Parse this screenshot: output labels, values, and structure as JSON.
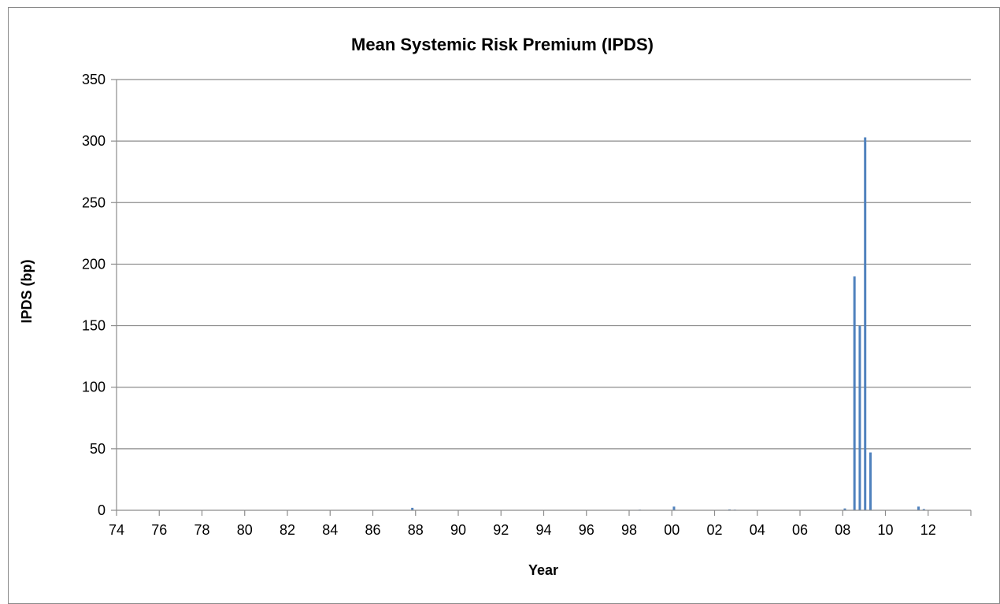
{
  "chart_data": {
    "type": "bar",
    "title": "Mean Systemic Risk Premium (IPDS)",
    "xlabel": "Year",
    "ylabel": "IPDS (bp)",
    "xlim": [
      1974,
      2014
    ],
    "ylim": [
      0,
      350
    ],
    "yticks": [
      0,
      50,
      100,
      150,
      200,
      250,
      300,
      350
    ],
    "xticks": [
      {
        "year": 1974,
        "label": "74"
      },
      {
        "year": 1976,
        "label": "76"
      },
      {
        "year": 1978,
        "label": "78"
      },
      {
        "year": 1980,
        "label": "80"
      },
      {
        "year": 1982,
        "label": "82"
      },
      {
        "year": 1984,
        "label": "84"
      },
      {
        "year": 1986,
        "label": "86"
      },
      {
        "year": 1988,
        "label": "88"
      },
      {
        "year": 1990,
        "label": "90"
      },
      {
        "year": 1992,
        "label": "92"
      },
      {
        "year": 1994,
        "label": "94"
      },
      {
        "year": 1996,
        "label": "96"
      },
      {
        "year": 1998,
        "label": "98"
      },
      {
        "year": 2000,
        "label": "00"
      },
      {
        "year": 2002,
        "label": "02"
      },
      {
        "year": 2004,
        "label": "04"
      },
      {
        "year": 2006,
        "label": "06"
      },
      {
        "year": 2008,
        "label": "08"
      },
      {
        "year": 2010,
        "label": "10"
      },
      {
        "year": 2012,
        "label": "12"
      }
    ],
    "grid": true,
    "bar_color": "#4f81bd",
    "series": [
      {
        "x": [
          1987.85,
          1998.5,
          2000.1,
          2002.7,
          2002.95,
          2008.1,
          2008.55,
          2008.8,
          2009.05,
          2009.3,
          2011.55,
          2011.8
        ],
        "values": [
          2,
          0.5,
          3,
          0.7,
          0.5,
          1.5,
          190,
          150,
          303,
          47,
          3,
          1
        ]
      }
    ]
  }
}
